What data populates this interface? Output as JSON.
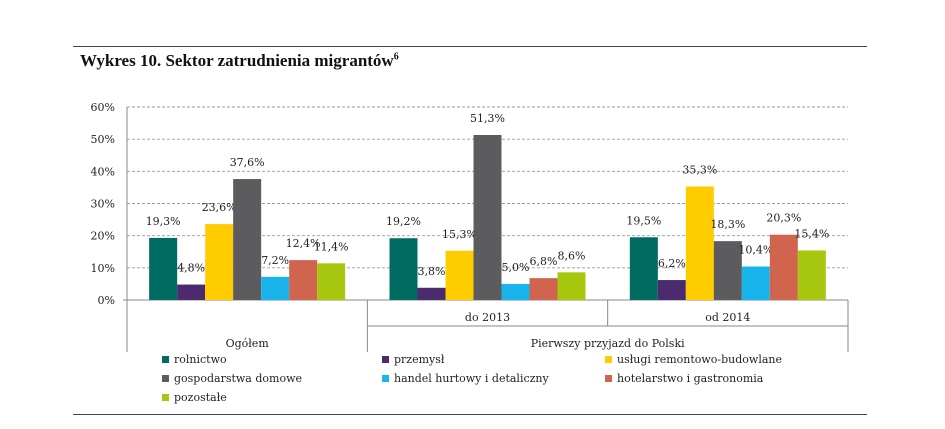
{
  "title": {
    "text": "Wykres 10. Sektor zatrudnienia migrantów",
    "footnote": "6"
  },
  "chart_data": {
    "type": "bar",
    "groups": [
      "Ogółem",
      "do 2013",
      "od 2014"
    ],
    "group_header": "Pierwszy przyjazd do Polski",
    "ylim": [
      0,
      60
    ],
    "yticks": [
      "0%",
      "10%",
      "20%",
      "30%",
      "40%",
      "50%",
      "60%"
    ],
    "ytick_values": [
      0,
      10,
      20,
      30,
      40,
      50,
      60
    ],
    "grid": true,
    "legend_position": "bottom",
    "series": [
      {
        "name": "rolnictwo",
        "color": "#006b61",
        "values": [
          19.3,
          19.2,
          19.5
        ],
        "labels": [
          "19,3%",
          "19,2%",
          "19,5%"
        ]
      },
      {
        "name": "przemysł",
        "color": "#4b2a6e",
        "values": [
          4.8,
          3.8,
          6.2
        ],
        "labels": [
          "4,8%",
          "3,8%",
          "6,2%"
        ]
      },
      {
        "name": "usługi remontowo-budowlane",
        "color": "#ffcc00",
        "values": [
          23.6,
          15.3,
          35.3
        ],
        "labels": [
          "23,6%",
          "15,3%",
          "35,3%"
        ]
      },
      {
        "name": "gospodarstwa domowe",
        "color": "#5c5c5e",
        "values": [
          37.6,
          51.3,
          18.3
        ],
        "labels": [
          "37,6%",
          "51,3%",
          "18,3%"
        ]
      },
      {
        "name": "handel hurtowy i detaliczny",
        "color": "#1ab4ec",
        "values": [
          7.2,
          5.0,
          10.4
        ],
        "labels": [
          "7,2%",
          "5,0%",
          "10,4%"
        ]
      },
      {
        "name": "hotelarstwo i gastronomia",
        "color": "#d0644e",
        "values": [
          12.4,
          6.8,
          20.3
        ],
        "labels": [
          "12,4%",
          "6,8%",
          "20,3%"
        ]
      },
      {
        "name": "pozostałe",
        "color": "#a7c80f",
        "values": [
          11.4,
          8.6,
          15.4
        ],
        "labels": [
          "11,4%",
          "8,6%",
          "15,4%"
        ]
      }
    ]
  }
}
